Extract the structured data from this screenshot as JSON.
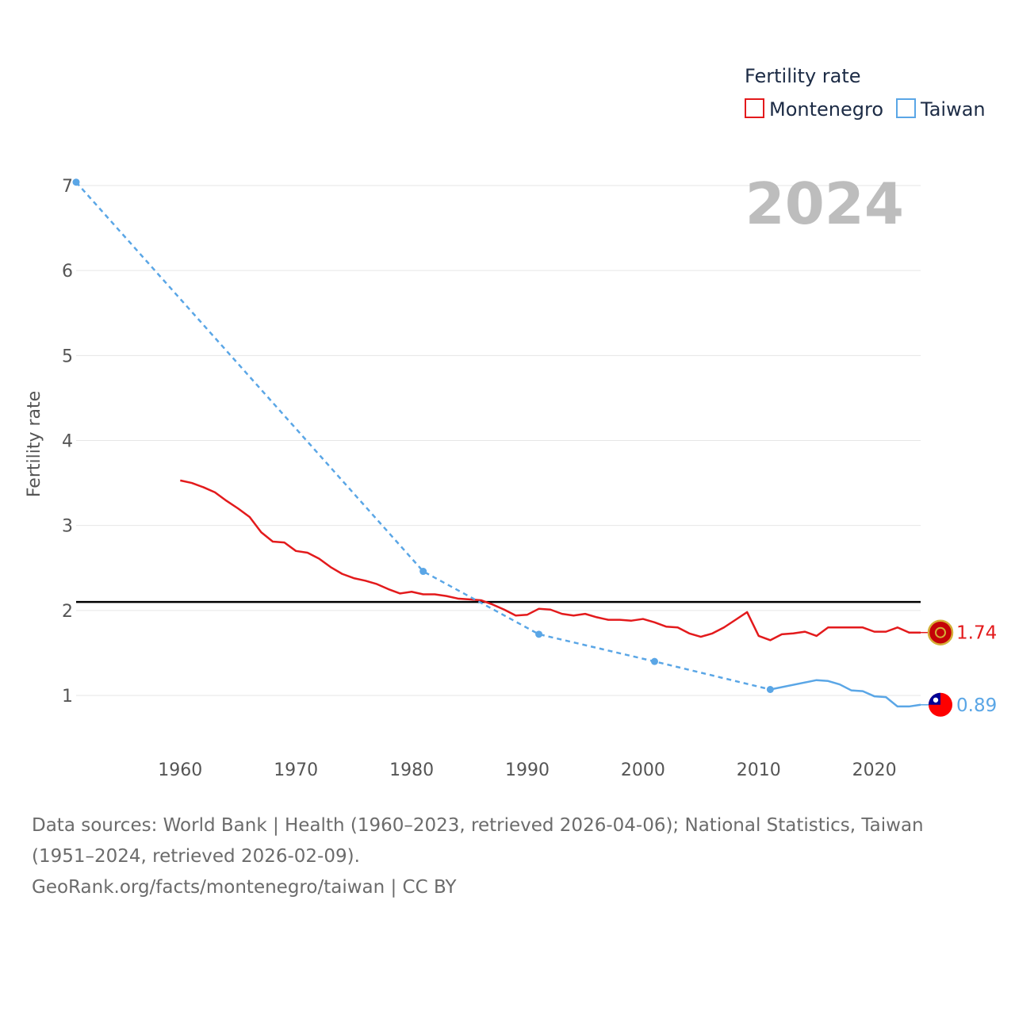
{
  "chart_data": {
    "type": "line",
    "title": "",
    "xlabel": "",
    "ylabel": "Fertility rate",
    "xlim": [
      1951,
      2024
    ],
    "ylim": [
      0,
      7
    ],
    "year_overlay": "2024",
    "x_ticks": [
      1960,
      1970,
      1980,
      1990,
      2000,
      2010,
      2020
    ],
    "y_ticks": [
      1,
      2,
      3,
      4,
      5,
      6,
      7
    ],
    "grid": true,
    "reference_line": 2.1,
    "legend": {
      "title": "Fertility rate",
      "position": "top-right",
      "entries": [
        "Montenegro",
        "Taiwan"
      ]
    },
    "series": [
      {
        "name": "Montenegro",
        "color": "#e31a1c",
        "style": "solid",
        "end_label": "1.74",
        "x": [
          1960,
          1961,
          1962,
          1963,
          1964,
          1965,
          1966,
          1967,
          1968,
          1969,
          1970,
          1971,
          1972,
          1973,
          1974,
          1975,
          1976,
          1977,
          1978,
          1979,
          1980,
          1981,
          1982,
          1983,
          1984,
          1985,
          1986,
          1987,
          1988,
          1989,
          1990,
          1991,
          1992,
          1993,
          1994,
          1995,
          1996,
          1997,
          1998,
          1999,
          2000,
          2001,
          2002,
          2003,
          2004,
          2005,
          2006,
          2007,
          2008,
          2009,
          2010,
          2011,
          2012,
          2013,
          2014,
          2015,
          2016,
          2017,
          2018,
          2019,
          2020,
          2021,
          2022,
          2023,
          2024
        ],
        "values": [
          3.53,
          3.5,
          3.45,
          3.39,
          3.29,
          3.2,
          3.1,
          2.92,
          2.81,
          2.8,
          2.7,
          2.68,
          2.61,
          2.51,
          2.43,
          2.38,
          2.35,
          2.31,
          2.25,
          2.2,
          2.22,
          2.19,
          2.19,
          2.17,
          2.14,
          2.13,
          2.12,
          2.07,
          2.01,
          1.94,
          1.95,
          2.02,
          2.01,
          1.96,
          1.94,
          1.96,
          1.92,
          1.89,
          1.89,
          1.88,
          1.9,
          1.86,
          1.81,
          1.8,
          1.73,
          1.69,
          1.73,
          1.8,
          1.89,
          1.98,
          1.7,
          1.65,
          1.72,
          1.73,
          1.75,
          1.7,
          1.8,
          1.8,
          1.8,
          1.8,
          1.75,
          1.75,
          1.8,
          1.74,
          1.74
        ]
      },
      {
        "name": "Taiwan",
        "color": "#5aa6e6",
        "style": "dashed-to-solid",
        "end_label": "0.89",
        "x": [
          1951,
          1981,
          1991,
          2001,
          2011,
          2015,
          2016,
          2017,
          2018,
          2019,
          2020,
          2021,
          2022,
          2023,
          2024
        ],
        "values": [
          7.04,
          2.46,
          1.72,
          1.4,
          1.07,
          1.18,
          1.17,
          1.13,
          1.06,
          1.05,
          0.99,
          0.98,
          0.87,
          0.87,
          0.89
        ],
        "markers_at": [
          1951,
          1981,
          1991,
          2001,
          2011
        ],
        "solid_from": 2011
      }
    ]
  },
  "footer": {
    "line1": "Data sources: World Bank | Health (1960–2023, retrieved 2026-04-06); National Statistics, Taiwan (1951–2024, retrieved 2026-02-09).",
    "line2": "GeoRank.org/facts/montenegro/taiwan | CC BY"
  }
}
